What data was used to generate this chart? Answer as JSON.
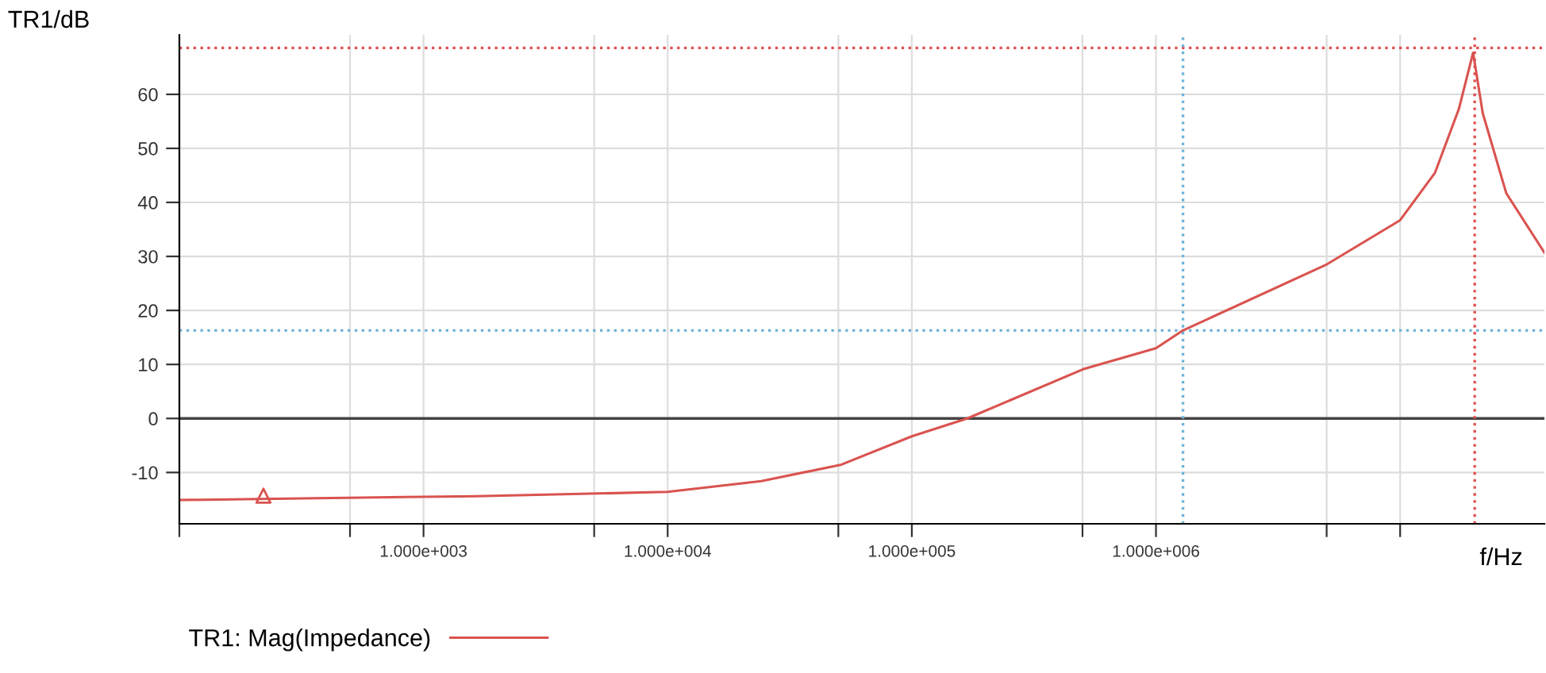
{
  "chart_data": {
    "type": "line",
    "xlabel": "f/Hz",
    "ylabel": "TR1/dB",
    "log": "x",
    "xlim": [
      100,
      39000000
    ],
    "ylim": [
      -19.5,
      71
    ],
    "xticks": [
      {
        "value": 100,
        "label": null
      },
      {
        "value": 500,
        "label": null
      },
      {
        "value": 1000,
        "label": "1.000e+003"
      },
      {
        "value": 5000,
        "label": null
      },
      {
        "value": 10000,
        "label": "1.000e+004"
      },
      {
        "value": 50000,
        "label": null
      },
      {
        "value": 100000,
        "label": "1.000e+005"
      },
      {
        "value": 500000,
        "label": null
      },
      {
        "value": 1000000,
        "label": "1.000e+006"
      },
      {
        "value": 5000000,
        "label": null
      },
      {
        "value": 10000000,
        "label": null
      }
    ],
    "yticks": [
      -10,
      0,
      10,
      20,
      30,
      40,
      50,
      60
    ],
    "grid": true,
    "legend": "bottom left",
    "series": [
      {
        "name": "TR1: Mag(Impedance)",
        "color": "#d9534f",
        "marker": "none",
        "line_style": "solid",
        "x": [
          100,
          1000,
          1637,
          10000,
          24150,
          51000,
          100000,
          168700,
          502000,
          1000000,
          1290000,
          4950000,
          10000000,
          13900000,
          17400000,
          19900000,
          21800000,
          27200000,
          39000000
        ],
        "values": [
          -15.1,
          -14.5,
          -14.4,
          -13.6,
          -11.6,
          -8.6,
          -3.3,
          0,
          9.1,
          13.0,
          16.3,
          28.4,
          36.7,
          45.5,
          57.3,
          67.7,
          56.5,
          41.7,
          30.7
        ]
      },
      {
        "type": "scatter",
        "color": "#d9534f",
        "marker": "triangle",
        "x": [
          221
        ],
        "values": [
          -14.3
        ]
      }
    ],
    "ref_lines": [
      {
        "axis": "y",
        "value": 0,
        "color": "#444444",
        "line_style": "solid"
      },
      {
        "axis": "y",
        "value": 68.6,
        "color": "#e05050",
        "line_style": "dotted"
      },
      {
        "axis": "y",
        "value": 16.3,
        "color": "#6fb3d9",
        "line_style": "dotted"
      },
      {
        "axis": "x",
        "value": 1290000,
        "color": "#6fb3d9",
        "line_style": "dotted"
      },
      {
        "axis": "x",
        "value": 20200000,
        "color": "#e05050",
        "line_style": "dotted"
      }
    ]
  }
}
